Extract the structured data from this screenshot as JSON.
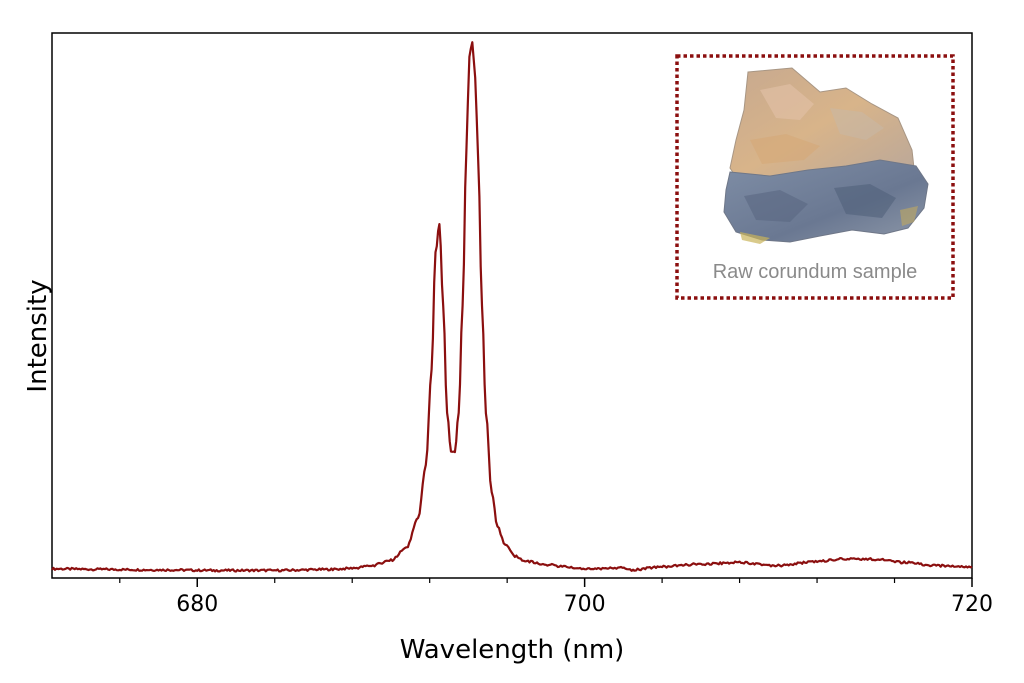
{
  "chart_data": {
    "type": "line",
    "xlabel": "Wavelength (nm)",
    "ylabel": "Intensity",
    "xlim": [
      672.5,
      720
    ],
    "ylim": [
      0,
      1
    ],
    "x_ticks_major": [
      680,
      700,
      720
    ],
    "x_ticks_minor": [
      676,
      684,
      688,
      692,
      696,
      704,
      708,
      712,
      716
    ],
    "y_tick_labels": false,
    "grid": false,
    "line_color": "#8b0f0f",
    "series": [
      {
        "x": [
          672.5,
          675,
          678,
          681,
          684,
          687,
          688,
          689,
          690,
          690.8,
          691.4,
          691.8,
          692.1,
          692.3,
          692.5,
          692.7,
          692.9,
          693.1,
          693.3,
          693.5,
          693.7,
          693.9,
          694.05,
          694.2,
          694.35,
          694.5,
          694.7,
          694.9,
          695.2,
          695.5,
          695.9,
          696.4,
          697,
          698,
          699,
          700,
          701,
          701.8,
          702.5,
          704,
          706,
          708,
          710,
          712,
          713.5,
          715,
          716.5,
          718,
          720
        ],
        "y": [
          0.006,
          0.005,
          0.004,
          0.003,
          0.003,
          0.005,
          0.007,
          0.012,
          0.022,
          0.045,
          0.1,
          0.2,
          0.38,
          0.6,
          0.655,
          0.5,
          0.3,
          0.225,
          0.225,
          0.3,
          0.5,
          0.8,
          0.97,
          0.995,
          0.93,
          0.78,
          0.5,
          0.3,
          0.15,
          0.085,
          0.05,
          0.03,
          0.02,
          0.014,
          0.01,
          0.006,
          0.006,
          0.008,
          0.004,
          0.01,
          0.015,
          0.018,
          0.012,
          0.02,
          0.025,
          0.024,
          0.018,
          0.012,
          0.01
        ]
      }
    ],
    "inset": {
      "caption": "Raw corundum sample",
      "border_color": "#8b0f0f",
      "image_subject": "rock-photo"
    }
  }
}
